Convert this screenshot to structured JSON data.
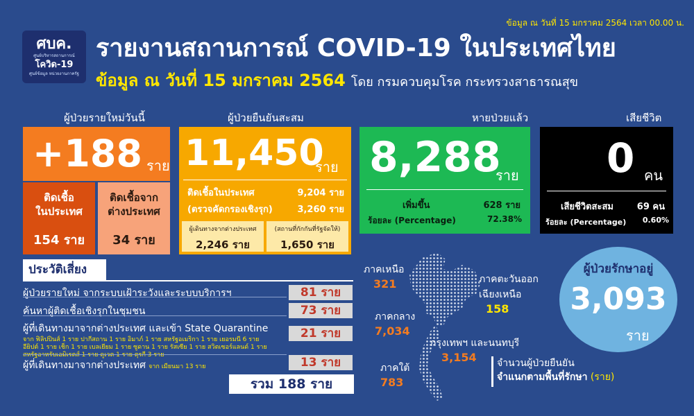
{
  "timestamp": "ข้อมูล ณ วันที่ 15 มกราคม 2564 เวลา 00.00 น.",
  "logo": {
    "line1": "ศบค.",
    "line2": "โควิด-19",
    "line3": "ศูนย์บริหารสถานการณ์",
    "line4": "ศูนย์ข้อมูล หน่วยงานภาครัฐ"
  },
  "title": "รายงานสถานการณ์ COVID-19 ในประเทศไทย",
  "subtitle": "ข้อมูล ณ วันที่ 15 มกราคม 2564",
  "subtitle_rest": "โดย กรมควบคุมโรค กระทรวงสาธารณสุข",
  "new_cases": {
    "caption": "ผู้ป่วยรายใหม่วันนี้",
    "value": "+188",
    "unit": "ราย",
    "local_label1": "ติดเชื้อ",
    "local_label2": "ในประเทศ",
    "local_value": "154 ราย",
    "abroad_label1": "ติดเชื้อจาก",
    "abroad_label2": "ต่างประเทศ",
    "abroad_value": "34 ราย"
  },
  "cumulative": {
    "caption": "ผู้ป่วยยืนยันสะสม",
    "value": "11,450",
    "unit": "ราย",
    "row1_label": "ติดเชื้อในประเทศ",
    "row1_value": "9,204 ราย",
    "row2_label": "(ตรวจคัดกรองเชิงรุก)",
    "row2_value": "3,260 ราย",
    "sub1_label": "ผู้เดินทางจากต่างประเทศ",
    "sub1_value": "2,246 ราย",
    "sub2_label": "(สถานที่กักกันที่รัฐจัดให้)",
    "sub2_value": "1,650 ราย"
  },
  "recovered": {
    "caption": "หายป่วยแล้ว",
    "value": "8,288",
    "unit": "ราย",
    "inc_label": "เพิ่มขึ้น",
    "inc_value": "628 ราย",
    "pct_label": "ร้อยละ (Percentage)",
    "pct_value": "72.38%"
  },
  "deaths": {
    "caption": "เสียชีวิต",
    "value": "0",
    "unit": "คน",
    "cum_label": "เสียชีวิตสะสม",
    "cum_value": "69 คน",
    "pct_label": "ร้อยละ (Percentage)",
    "pct_value": "0.60%"
  },
  "history": {
    "title": "ประวัติเสี่ยง",
    "items": [
      {
        "label": "ผู้ป่วยรายใหม่ จากระบบเฝ้าระวังและระบบบริการฯ",
        "sub": "",
        "value": "81 ราย"
      },
      {
        "label": "ค้นหาผู้ติดเชื้อเชิงรุกในชุมชน",
        "sub": "",
        "value": "73 ราย"
      },
      {
        "label": "ผู้ที่เดินทางมาจากต่างประเทศ และเข้า State Quarantine",
        "sub": "จาก ฟิลิปปินส์ 1 ราย ปากีสถาน 1 ราย อิมาภ์ 1 ราย สหรัฐอเมริกา 1 ราย เยอรมนี 6 ราย|อียิปต์ 1 ราย เช็ก 1 ราย เบลเยียม 1 ราย ซูดาน 1 ราย รัสเซีย 1 ราย สวิตเซอร์แลนด์ 1 ราย|สหรัฐอาหรับเอมิเรตส์ 1 ราย คูเวต 1 ราย ตุรกี 3 ราย",
        "value": "21 ราย"
      },
      {
        "label": "ผู้ที่เดินทางมาจากต่างประเทศ",
        "sub": "จาก เมียนมา 13 ราย",
        "value": "13 ราย"
      }
    ],
    "total": "รวม 188 ราย"
  },
  "regions": {
    "north": {
      "name": "ภาคเหนือ",
      "value": "321"
    },
    "northeast": {
      "name1": "ภาคตะวันออก",
      "name2": "เฉียงเหนือ",
      "value": "158"
    },
    "central": {
      "name": "ภาคกลาง",
      "value": "7,034"
    },
    "bangkok": {
      "name": "กรุงเทพฯ และนนทบุรี",
      "value": "3,154"
    },
    "south": {
      "name": "ภาคใต้",
      "value": "783"
    }
  },
  "treatment": {
    "caption": "ผู้ป่วยรักษาอยู่",
    "value": "3,093",
    "unit": "ราย"
  },
  "map_note": {
    "line1": "จำนวนผู้ป่วยยืนยัน",
    "line2": "จำแนกตามพื้นที่รักษา",
    "line3": "(ราย)"
  },
  "colors": {
    "background": "#2a4b8d",
    "orange": "#f47c20",
    "amber": "#f7a800",
    "green": "#1db954",
    "black": "#000000",
    "yellow": "#ffe600",
    "circle": "#6fb3e0"
  },
  "icons": [
    "logo",
    "thailand-map"
  ]
}
